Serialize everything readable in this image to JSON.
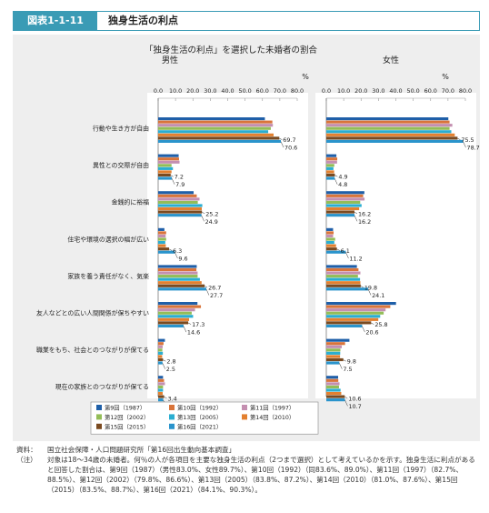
{
  "header": {
    "figure_number": "図表1-1-11",
    "title": "独身生活の利点"
  },
  "chart_data": {
    "type": "bar",
    "orientation": "horizontal",
    "title": "「独身生活の利点」を選択した未婚者の割合",
    "unit": "%",
    "xlim": [
      0,
      80
    ],
    "ticks": [
      "0.0",
      "10.0",
      "20.0",
      "30.0",
      "40.0",
      "50.0",
      "60.0",
      "70.0",
      "80.0"
    ],
    "categories": [
      "行動や生き方が自由",
      "異性との交際が自由",
      "金銭的に裕福",
      "住宅や環境の選択の幅が広い",
      "家族を養う責任がなく、気楽",
      "友人などとの広い人間関係が保ちやすい",
      "職業をもち、社会とのつながりが保てる",
      "現在の家族とのつながりが保てる"
    ],
    "panels": [
      {
        "name": "男性",
        "series": [
          {
            "name": "第9回（1987）",
            "color": "#1f5fa8",
            "values": [
              61.4,
              11.8,
              20.4,
              3.6,
              22.2,
              22.6,
              3.9,
              2.8
            ]
          },
          {
            "name": "第10回（1992）",
            "color": "#d9743a",
            "values": [
              65.7,
              12.0,
              22.2,
              4.6,
              22.0,
              24.6,
              3.1,
              3.4
            ]
          },
          {
            "name": "第11回（1997）",
            "color": "#c48fb0",
            "values": [
              66.0,
              12.3,
              23.8,
              4.3,
              22.7,
              21.2,
              2.6,
              3.9
            ]
          },
          {
            "name": "第12回（2002）",
            "color": "#93bd57",
            "values": [
              64.8,
              7.7,
              22.8,
              4.6,
              22.7,
              19.3,
              2.4,
              2.8
            ]
          },
          {
            "name": "第13回（2005）",
            "color": "#2aaed1",
            "values": [
              63.3,
              8.5,
              25.4,
              4.1,
              24.0,
              20.1,
              2.7,
              2.8
            ]
          },
          {
            "name": "第14回（2010）",
            "color": "#e3802f",
            "values": [
              66.4,
              7.7,
              25.1,
              4.4,
              25.0,
              17.8,
              2.3,
              2.6
            ]
          },
          {
            "name": "第15回（2015）",
            "color": "#7a4a20",
            "values": [
              69.7,
              7.2,
              25.2,
              6.3,
              26.7,
              17.3,
              2.8,
              3.4
            ]
          },
          {
            "name": "第16回（2021）",
            "color": "#2a94cc",
            "values": [
              70.6,
              7.9,
              24.9,
              9.6,
              27.7,
              14.6,
              2.5,
              2.9
            ]
          }
        ],
        "data_labels": [
          [
            "69.7",
            "70.6"
          ],
          [
            "7.2",
            "7.9"
          ],
          [
            "25.2",
            "24.9"
          ],
          [
            "6.3",
            "9.6"
          ],
          [
            "26.7",
            "27.7"
          ],
          [
            "17.3",
            "14.6"
          ],
          [
            "2.8",
            "2.5"
          ],
          [
            "3.4",
            "2.9"
          ]
        ]
      },
      {
        "name": "女性",
        "series": [
          {
            "name": "第9回（1987）",
            "color": "#1f5fa8",
            "values": [
              70.2,
              5.8,
              21.9,
              3.9,
              17.6,
              40.1,
              13.3,
              6.8
            ]
          },
          {
            "name": "第10回（1992）",
            "color": "#d9743a",
            "values": [
              70.9,
              6.3,
              21.2,
              4.2,
              18.5,
              36.8,
              10.8,
              6.9
            ]
          },
          {
            "name": "第11回（1997）",
            "color": "#c48fb0",
            "values": [
              72.5,
              6.2,
              22.0,
              3.9,
              19.6,
              34.1,
              8.9,
              7.6
            ]
          },
          {
            "name": "第12回（2002）",
            "color": "#93bd57",
            "values": [
              70.9,
              4.6,
              19.5,
              5.1,
              18.2,
              33.0,
              8.1,
              7.3
            ]
          },
          {
            "name": "第13回（2005）",
            "color": "#2aaed1",
            "values": [
              71.9,
              4.1,
              20.3,
              4.6,
              19.4,
              31.0,
              8.0,
              8.2
            ]
          },
          {
            "name": "第14回（2010）",
            "color": "#e3802f",
            "values": [
              73.9,
              4.5,
              18.9,
              5.6,
              19.6,
              29.9,
              7.9,
              8.6
            ]
          },
          {
            "name": "第15回（2015）",
            "color": "#7a4a20",
            "values": [
              75.5,
              4.9,
              16.2,
              6.1,
              19.8,
              25.8,
              9.8,
              10.6
            ]
          },
          {
            "name": "第16回（2021）",
            "color": "#2a94cc",
            "values": [
              78.7,
              4.8,
              16.2,
              11.2,
              24.1,
              20.6,
              7.5,
              10.7
            ]
          }
        ],
        "data_labels": [
          [
            "75.5",
            "78.7"
          ],
          [
            "4.9",
            "4.8"
          ],
          [
            "16.2",
            "16.2"
          ],
          [
            "6.1",
            "11.2"
          ],
          [
            "19.8",
            "24.1"
          ],
          [
            "25.8",
            "20.6"
          ],
          [
            "9.8",
            "7.5"
          ],
          [
            "10.6",
            "10.7"
          ]
        ]
      }
    ],
    "legend": [
      "第9回（1987）",
      "第10回（1992）",
      "第11回（1997）",
      "第12回（2002）",
      "第13回（2005）",
      "第14回（2010）",
      "第15回（2015）",
      "第16回（2021）"
    ],
    "legend_position": "bottom-center"
  },
  "notes": [
    {
      "label": "資料：",
      "text": "国立社会保障・人口問題研究所「第16回出生動向基本調査」"
    },
    {
      "label": "（注）",
      "text": "対象は18～34歳の未婚者。何％の人が各項目を主要な独身生活の利点（2つまで選択）として考えているかを示す。独身生活に利点があると回答した割合は、第9回（1987）（男性83.0%、女性89.7%）、第10回（1992）（同83.6%、89.0%）、第11回（1997）（82.7%、88.5%）、第12回（2002）（79.8%、86.6%）、第13回（2005）（83.8%、87.2%）、第14回（2010）（81.0%、87.6%）、第15回（2015）（83.5%、88.7%）、第16回（2021）（84.1%、90.3%）。"
    }
  ]
}
